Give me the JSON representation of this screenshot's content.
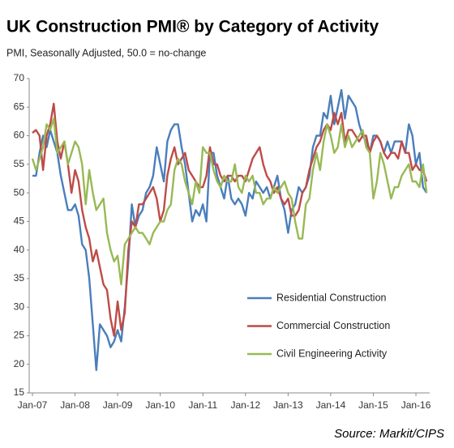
{
  "chart_data": {
    "type": "line",
    "title": "UK Construction PMI® by Category of Activity",
    "subtitle": "PMI, Seasonally Adjusted, 50.0 = no-change",
    "source": "Source: Markit/CIPS",
    "categories": [
      "Jan-07",
      null,
      null,
      null,
      null,
      null,
      null,
      null,
      null,
      null,
      null,
      null,
      "Jan-08",
      null,
      null,
      null,
      null,
      null,
      null,
      null,
      null,
      null,
      null,
      null,
      "Jan-09",
      null,
      null,
      null,
      null,
      null,
      null,
      null,
      null,
      null,
      null,
      null,
      "Jan-10",
      null,
      null,
      null,
      null,
      null,
      null,
      null,
      null,
      null,
      null,
      null,
      "Jan-11",
      null,
      null,
      null,
      null,
      null,
      null,
      null,
      null,
      null,
      null,
      null,
      "Jan-12",
      null,
      null,
      null,
      null,
      null,
      null,
      null,
      null,
      null,
      null,
      null,
      "Jan-13",
      null,
      null,
      null,
      null,
      null,
      null,
      null,
      null,
      null,
      null,
      null,
      "Jan-14",
      null,
      null,
      null,
      null,
      null,
      null,
      null,
      null,
      null,
      null,
      null,
      "Jan-15",
      null,
      null,
      null,
      null,
      null,
      null,
      null,
      null,
      null,
      null,
      null,
      "Jan-16",
      null,
      null,
      null
    ],
    "series": [
      {
        "name": "Residential Construction",
        "color": "#4a7ebb",
        "values": [
          53,
          53,
          57,
          60,
          58,
          61,
          59,
          57,
          53,
          50,
          47,
          47,
          48,
          46,
          41,
          40,
          35,
          27,
          19,
          27,
          26,
          25,
          23,
          24,
          26,
          24,
          30,
          38,
          48,
          44,
          46,
          47,
          50,
          51,
          53,
          58,
          55,
          52,
          59,
          61,
          62,
          62,
          58,
          55,
          50,
          45,
          47,
          46,
          48,
          45,
          57,
          57,
          53,
          51,
          49,
          53,
          49,
          48,
          49,
          48,
          46,
          50,
          49,
          52,
          51,
          50,
          51,
          49,
          51,
          53,
          49,
          47,
          43,
          47,
          48,
          51,
          50,
          51,
          53,
          58,
          60,
          60,
          64,
          63,
          67,
          62,
          65,
          68,
          63,
          67,
          66,
          65,
          62,
          60,
          59,
          57,
          60,
          60,
          59,
          57,
          59,
          57,
          59,
          59,
          59,
          57,
          62,
          60,
          55,
          57,
          51,
          50
        ]
      },
      {
        "name": "Commercial Construction",
        "color": "#be4b48",
        "values": [
          60.5,
          61,
          60,
          54,
          60,
          62,
          65.6,
          59,
          56,
          59,
          55,
          50,
          54,
          52,
          47,
          44,
          42,
          38,
          40,
          37,
          34,
          33,
          28,
          25,
          31,
          26,
          29,
          40,
          45,
          44,
          48,
          48,
          49,
          50,
          51,
          49,
          45,
          47,
          53,
          56,
          58,
          55,
          56,
          57,
          54,
          53,
          52,
          51,
          51,
          53,
          58,
          55,
          55,
          53,
          52,
          53,
          53,
          52,
          53,
          53,
          52,
          54,
          56,
          57,
          58,
          55,
          53,
          52,
          50,
          51,
          49,
          48,
          49,
          46,
          46,
          47,
          50,
          51,
          54,
          56,
          58,
          59,
          61,
          62,
          61,
          64,
          62,
          64,
          59,
          61,
          61,
          60,
          59,
          60,
          60,
          57,
          59,
          60,
          59,
          57,
          56,
          57,
          57,
          56,
          59,
          57,
          57,
          54,
          55,
          54,
          54,
          52
        ]
      },
      {
        "name": "Civil Engineering Activity",
        "color": "#98b954",
        "values": [
          56,
          54,
          56,
          58,
          62,
          61,
          63,
          57,
          58,
          59,
          55,
          57,
          59,
          58,
          55,
          48,
          54,
          50,
          47,
          48,
          49,
          43,
          40,
          38,
          39,
          34,
          41,
          42,
          43,
          44,
          43,
          43,
          42,
          41,
          43,
          44,
          45,
          45,
          47,
          48,
          54,
          56,
          55,
          52,
          50,
          48,
          52,
          50,
          58,
          57,
          57,
          54,
          52,
          51,
          53,
          52,
          52,
          55,
          51,
          50,
          53,
          52,
          53,
          50,
          50,
          48,
          49,
          49,
          51,
          50,
          51,
          52,
          50,
          49,
          45,
          42,
          42,
          48,
          49,
          54,
          57,
          54,
          59,
          62,
          60,
          57,
          58,
          62,
          58,
          60,
          58,
          59,
          60,
          61,
          58,
          57,
          49,
          52,
          57,
          55,
          52,
          49,
          51,
          51,
          53,
          54,
          55,
          52,
          52,
          51,
          55,
          50
        ]
      }
    ],
    "ylim": [
      15,
      70
    ],
    "yticks": [
      15,
      20,
      25,
      30,
      35,
      40,
      45,
      50,
      55,
      60,
      65,
      70
    ]
  }
}
